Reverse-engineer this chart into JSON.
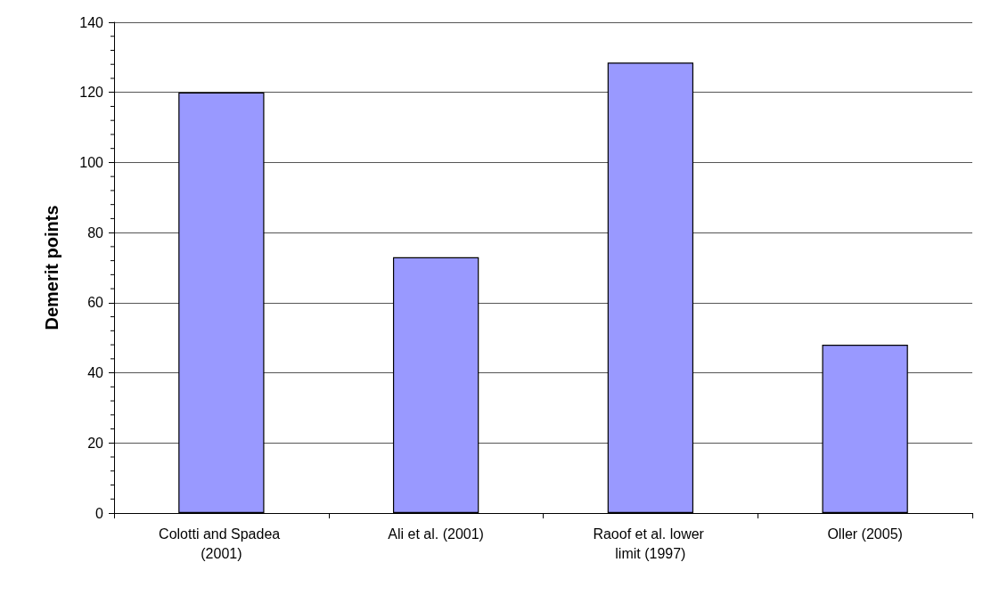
{
  "chart_data": {
    "type": "bar",
    "ylabel": "Demerit points",
    "categories": [
      "Colotti and Spadea (2001)",
      "Ali et al. (2001)",
      "Raoof et al. lower limit (1997)",
      "Oller (2005)"
    ],
    "values": [
      120,
      73,
      128.5,
      48
    ],
    "color": "#9999ff",
    "ylim": [
      0,
      140
    ],
    "yticks": [
      0,
      20,
      40,
      60,
      80,
      100,
      120,
      140
    ],
    "grid": "y"
  }
}
